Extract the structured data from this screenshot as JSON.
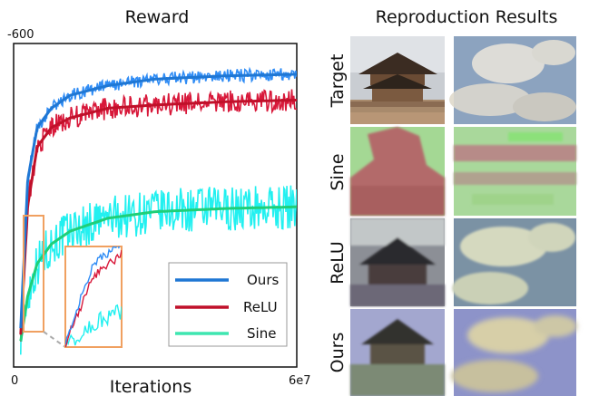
{
  "left_panel": {
    "title": "Reward",
    "xlabel": "Iterations",
    "x_tick_min": "0",
    "x_tick_max": "6e7",
    "y_tick_top": "-600"
  },
  "right_panel": {
    "title": "Reproduction Results",
    "rows": [
      "Target",
      "Sine",
      "ReLU",
      "Ours"
    ]
  },
  "legend": [
    {
      "name": "Ours",
      "color": "#1f77d4"
    },
    {
      "name": "ReLU",
      "color": "#c0102a"
    },
    {
      "name": "Sine",
      "color": "#3ee6b0"
    }
  ],
  "chart_data": {
    "type": "line",
    "title": "Reward",
    "xlabel": "Iterations",
    "ylabel": "",
    "xlim": [
      0,
      60000000
    ],
    "y_top_label": -600,
    "grid": false,
    "legend_placement": "bottom-right",
    "inset": "zoom on early iterations",
    "series": [
      {
        "name": "Ours",
        "raw_color": "#2f8cf5",
        "smooth_color": "#1f77d4",
        "x": [
          1500000,
          3000000,
          5000000,
          8000000,
          12000000,
          20000000,
          30000000,
          45000000,
          60000000
        ],
        "values": [
          0.12,
          0.58,
          0.74,
          0.8,
          0.84,
          0.87,
          0.89,
          0.9,
          0.905
        ]
      },
      {
        "name": "ReLU",
        "raw_color": "#d8183a",
        "smooth_color": "#c0102a",
        "x": [
          1500000,
          3000000,
          5000000,
          8000000,
          12000000,
          20000000,
          30000000,
          45000000,
          60000000
        ],
        "values": [
          0.1,
          0.5,
          0.68,
          0.74,
          0.77,
          0.8,
          0.81,
          0.82,
          0.825
        ]
      },
      {
        "name": "Sine",
        "raw_color": "#22f0f0",
        "smooth_color": "#1fcf78",
        "x": [
          1500000,
          3000000,
          5000000,
          8000000,
          12000000,
          20000000,
          30000000,
          45000000,
          60000000
        ],
        "values": [
          0.08,
          0.22,
          0.32,
          0.38,
          0.42,
          0.46,
          0.48,
          0.49,
          0.495
        ]
      }
    ]
  }
}
